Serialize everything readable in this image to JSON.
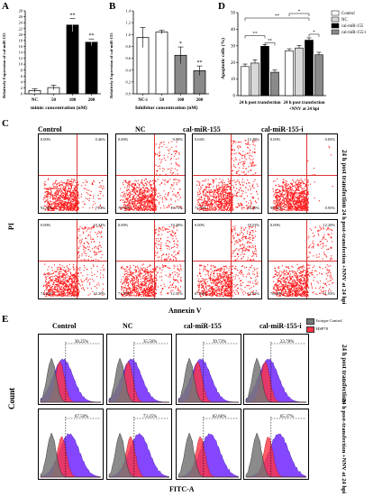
{
  "panels": {
    "A": {
      "label": "A",
      "ylabel": "Relatively Expression of cal-miR-155",
      "xlabel": "mimic concentration (nM)",
      "ytick_labels": [
        "0",
        "2",
        "4",
        "6",
        "8",
        "10",
        "12",
        "14",
        "16",
        "18",
        "20",
        "22",
        "24",
        "26",
        "28"
      ],
      "categories": [
        "NC",
        "50",
        "100",
        "200"
      ],
      "sig": [
        "**",
        "**"
      ]
    },
    "B": {
      "label": "B",
      "ylabel": "Relatively Expression of cal-miR-155",
      "xlabel": "Inhibitor concentration (nM)",
      "ytick_labels": [
        "0.0",
        "0.2",
        "0.4",
        "0.6",
        "0.8",
        "1.0",
        "1.2",
        "1.4"
      ],
      "categories": [
        "NC-i",
        "50",
        "100",
        "200"
      ],
      "sig": [
        "*",
        "**"
      ]
    },
    "D": {
      "label": "D",
      "ylabel": "Apoptotic cells (%)",
      "ytick_labels": [
        "0",
        "10",
        "20",
        "30",
        "40",
        "50"
      ],
      "groups": [
        "24 h post transfection",
        "24 h post transfection +NNV at 24 hpi"
      ],
      "legend": [
        "Control",
        "NC",
        "cal-miR-155",
        "cal-miR-155-i"
      ],
      "sig": [
        "**",
        "**",
        "**",
        "*",
        "*"
      ]
    },
    "C": {
      "label": "C",
      "columns": [
        "Control",
        "NC",
        "cal-miR-155",
        "cal-miR-155-i"
      ],
      "rows": [
        "24 h post transfection",
        "24 h post-transfection +NNV at 24 hpi"
      ],
      "ylabel": "PI",
      "xlabel": "Annexin V",
      "quadrants": [
        [
          [
            "0.00%",
            "0.46%",
            "92.58%",
            "7.03%"
          ],
          [
            "0.00%",
            "9.08%",
            "79.35%",
            "10.73%"
          ],
          [
            "0.04%",
            "13.49%",
            "71.83%",
            "14.60%"
          ],
          [
            "0.00%",
            "0.83%",
            "98.32%",
            "0.93%"
          ]
        ],
        [
          [
            "0.00%",
            "10.44%",
            "74.20%",
            "10.20%"
          ],
          [
            "0.00%",
            "10.48%",
            "71.93%",
            "12.57%"
          ],
          [
            "0.00%",
            "19.53%",
            "67.04%",
            "12.83%"
          ],
          [
            "0.00%",
            "12.20%",
            "76.08%",
            "11.93%"
          ]
        ]
      ]
    },
    "E": {
      "label": "E",
      "columns": [
        "Control",
        "NC",
        "cal-miR-155",
        "cal-miR-155-i"
      ],
      "rows": [
        "24 h post transfection",
        "24 h post-transfection +NNV at 24 hpi"
      ],
      "ylabel": "Count",
      "xlabel": "FITC-A",
      "legend": [
        "Isotype Control",
        "HSP70"
      ],
      "percents": [
        [
          "30.25%",
          "35.56%",
          "39.72%",
          "23.78%"
        ],
        [
          "67.50%",
          "73.25%",
          "82.66%",
          "65.37%"
        ]
      ]
    }
  },
  "chart_data": [
    {
      "type": "bar",
      "panel": "A",
      "categories": [
        "NC",
        "50",
        "100",
        "200"
      ],
      "values": [
        1.1,
        2.1,
        23.2,
        17.4
      ],
      "errors": [
        0.6,
        0.8,
        2.2,
        1.1
      ],
      "ylim": [
        0,
        28
      ],
      "xlabel": "mimic concentration (nM)",
      "ylabel": "Relatively Expression of cal-miR-155"
    },
    {
      "type": "bar",
      "panel": "B",
      "categories": [
        "NC-i",
        "50",
        "100",
        "200"
      ],
      "values": [
        0.95,
        1.04,
        0.65,
        0.39
      ],
      "errors": [
        0.17,
        0.03,
        0.14,
        0.08
      ],
      "ylim": [
        0,
        1.4
      ],
      "xlabel": "Inhibitor concentration (nM)",
      "ylabel": "Relatively Expression of cal-miR-155"
    },
    {
      "type": "bar",
      "panel": "D",
      "categories": [
        "24 h post transfection",
        "24 h post transfection +NNV at 24 hpi"
      ],
      "series": [
        {
          "name": "Control",
          "values": [
            17.5,
            27.0
          ],
          "errors": [
            1.5,
            1.2
          ]
        },
        {
          "name": "NC",
          "values": [
            19.6,
            28.7
          ],
          "errors": [
            2.0,
            1.5
          ]
        },
        {
          "name": "cal-miR-155",
          "values": [
            29.7,
            33.4
          ],
          "errors": [
            1.0,
            1.4
          ]
        },
        {
          "name": "cal-miR-155-i",
          "values": [
            14.1,
            24.6
          ],
          "errors": [
            1.3,
            1.5
          ]
        }
      ],
      "ylim": [
        0,
        50
      ],
      "ylabel": "Apoptotic cells (%)"
    }
  ],
  "colors": {
    "gate": "#dd3333",
    "dots": "#ff1a1a",
    "iso": "#777777",
    "hsp": "#7733ff",
    "hsp2": "#ff3344",
    "barWhite": "#ffffff",
    "barLight": "#d8d8d8",
    "barBlack": "#000000",
    "barGray": "#8a8a8a"
  }
}
